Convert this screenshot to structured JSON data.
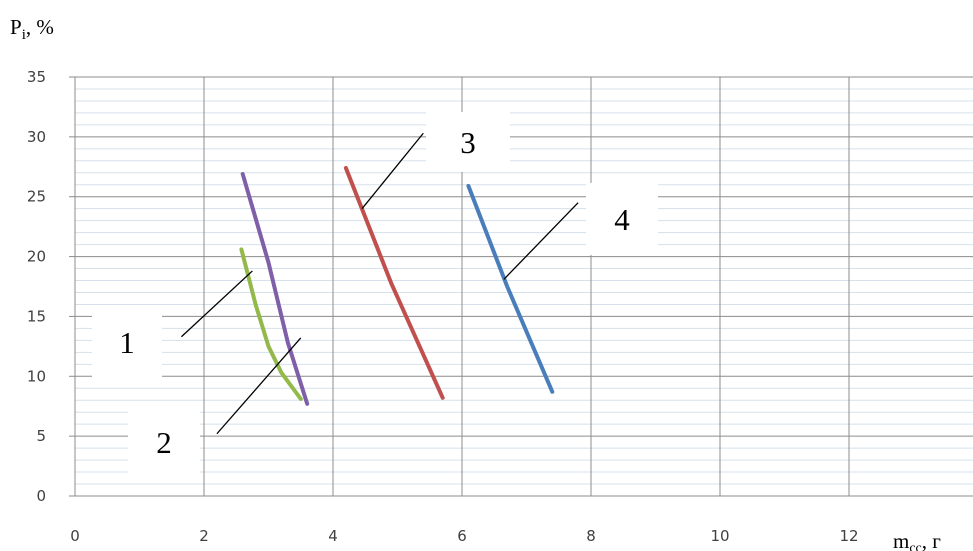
{
  "chart_data": {
    "type": "line",
    "title": "",
    "ylabel": {
      "main": "P",
      "sub": "i",
      "suffix": ", %"
    },
    "xlabel": {
      "main": "m",
      "sub": "cc",
      "suffix": ", г"
    },
    "xlim": [
      0,
      14
    ],
    "ylim": [
      0,
      35
    ],
    "xticks": [
      "0",
      "2",
      "4",
      "6",
      "8",
      "10",
      "12"
    ],
    "yticks": [
      "0",
      "5",
      "10",
      "15",
      "20",
      "25",
      "30",
      "35"
    ],
    "major_grid_x": [
      0,
      2,
      4,
      6,
      8,
      10,
      12
    ],
    "major_grid_y": [
      0,
      5,
      10,
      15,
      20,
      25,
      30,
      35
    ],
    "minor_grid_y_step": 1,
    "grid": true,
    "series": [
      {
        "color": "#7f5fa8",
        "points": [
          [
            2.6,
            26.9
          ],
          [
            3.0,
            19.5
          ],
          [
            3.3,
            12.8
          ],
          [
            3.6,
            7.7
          ]
        ]
      },
      {
        "color": "#93b94b",
        "points": [
          [
            2.58,
            20.6
          ],
          [
            2.8,
            16.0
          ],
          [
            3.0,
            12.5
          ],
          [
            3.2,
            10.3
          ],
          [
            3.5,
            8.1
          ]
        ]
      },
      {
        "color": "#c0504d",
        "points": [
          [
            4.2,
            27.4
          ],
          [
            4.9,
            17.8
          ],
          [
            5.7,
            8.2
          ]
        ]
      },
      {
        "color": "#4a7ebb",
        "points": [
          [
            6.1,
            25.9
          ],
          [
            6.7,
            17.5
          ],
          [
            7.4,
            8.7
          ]
        ]
      }
    ],
    "annotations": [
      {
        "label": "1",
        "line_from": [
          1.65,
          13.3
        ],
        "line_to": [
          2.75,
          18.8
        ]
      },
      {
        "label": "2",
        "line_from": [
          2.2,
          5.2
        ],
        "line_to": [
          3.5,
          13.2
        ]
      },
      {
        "label": "3",
        "line_from": [
          4.45,
          24.0
        ],
        "line_to": [
          5.4,
          30.3
        ]
      },
      {
        "label": "4",
        "line_from": [
          6.65,
          18.1
        ],
        "line_to": [
          7.8,
          24.5
        ]
      }
    ]
  }
}
